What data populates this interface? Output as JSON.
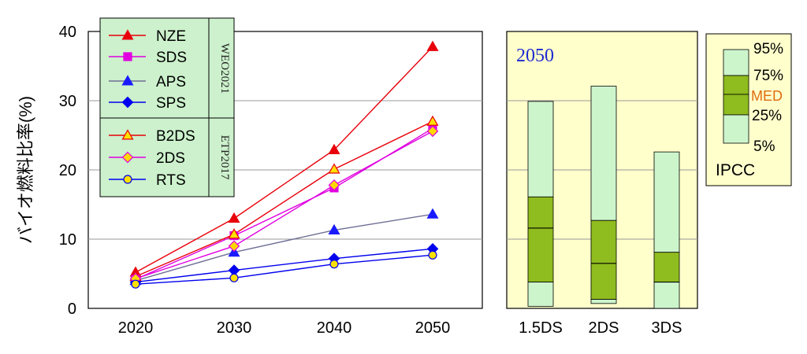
{
  "chart_data": [
    {
      "type": "line",
      "ylabel": "バイオ燃料比率(%)",
      "categories": [
        "2020",
        "2030",
        "2040",
        "2050"
      ],
      "ylim": [
        0,
        40
      ],
      "yticks": [
        "0",
        "10",
        "20",
        "30",
        "40"
      ],
      "grid": "horizontal",
      "legend_groups": [
        {
          "label": "WEO2021",
          "entries": [
            "NZE",
            "SDS",
            "APS",
            "SPS"
          ]
        },
        {
          "label": "ETP2017",
          "entries": [
            "B2DS",
            "2DS",
            "RTS"
          ]
        }
      ],
      "legend_placement": "top-left",
      "series": [
        {
          "name": "NZE",
          "values": [
            5.2,
            13.0,
            22.9,
            37.8
          ],
          "color": "#e8000b",
          "marker": "triangle"
        },
        {
          "name": "SDS",
          "values": [
            4.2,
            10.5,
            17.4,
            26.0
          ],
          "color": "#e000e0",
          "marker": "square"
        },
        {
          "name": "APS",
          "values": [
            4.0,
            8.1,
            11.3,
            13.6
          ],
          "color": "#1a1aff",
          "line_color": "#6e6e96",
          "marker": "triangle"
        },
        {
          "name": "SPS",
          "values": [
            3.8,
            5.5,
            7.2,
            8.6
          ],
          "color": "#0000ee",
          "marker": "diamond"
        },
        {
          "name": "B2DS",
          "values": [
            4.6,
            10.7,
            20.1,
            27.0
          ],
          "color": "#e8000b",
          "marker_fill": "#ffe000",
          "marker": "triangle"
        },
        {
          "name": "2DS",
          "values": [
            4.3,
            9.0,
            17.8,
            25.6
          ],
          "color": "#e000e0",
          "marker_fill": "#ffd700",
          "marker": "diamond"
        },
        {
          "name": "RTS",
          "values": [
            3.5,
            4.4,
            6.4,
            7.7
          ],
          "color": "#0000ee",
          "marker_fill": "#ffe000",
          "marker": "circle"
        }
      ]
    },
    {
      "type": "bar",
      "title": "2050",
      "categories": [
        "1.5DS",
        "2DS",
        "3DS"
      ],
      "ylim": [
        0,
        40
      ],
      "grid": "horizontal",
      "ranges": [
        {
          "name": "1.5DS",
          "p5": 0.3,
          "p25": 3.8,
          "med": 11.6,
          "p75": 16.1,
          "p95": 29.9
        },
        {
          "name": "2DS",
          "p5": 0.7,
          "p25": 1.3,
          "med": 6.5,
          "p75": 12.7,
          "p95": 32.1
        },
        {
          "name": "3DS",
          "p5": 0.0,
          "p25": 3.8,
          "med": 3.8,
          "p75": 8.1,
          "p95": 22.6
        }
      ],
      "legend": {
        "labels": [
          "95%",
          "75%",
          "MED",
          "25%",
          "5%"
        ],
        "title": "IPCC"
      },
      "colors": {
        "light": "#ccf5cc",
        "dark": "#8fbc1e",
        "panel": "#ffffcc",
        "med_text": "#e06c10"
      }
    }
  ]
}
